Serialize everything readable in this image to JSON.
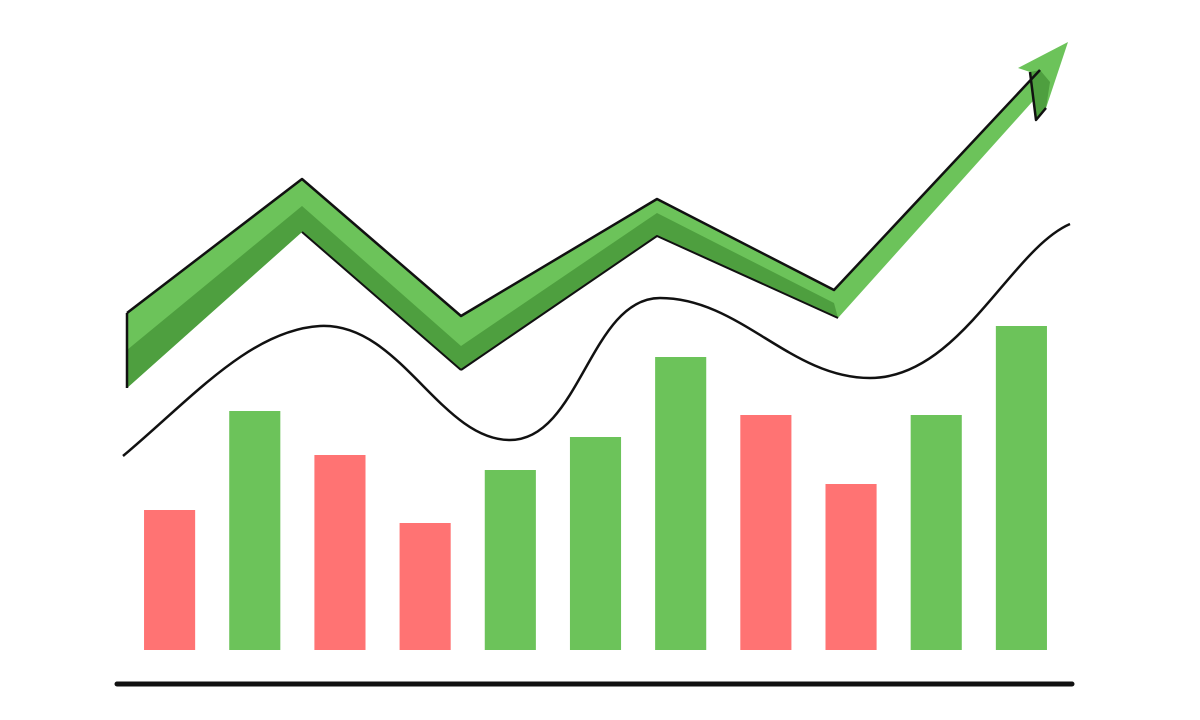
{
  "chart_data": {
    "type": "bar",
    "categories": [
      null,
      null,
      null,
      null,
      null,
      null,
      null,
      null,
      null,
      null,
      null
    ],
    "values": [
      140,
      239,
      195,
      127,
      180,
      213,
      293,
      235,
      166,
      235,
      324
    ],
    "colors": [
      "#ff7373",
      "#6cc35a",
      "#ff7373",
      "#ff7373",
      "#6cc35a",
      "#6cc35a",
      "#6cc35a",
      "#ff7373",
      "#ff7373",
      "#6cc35a",
      "#6cc35a"
    ]
  }
}
